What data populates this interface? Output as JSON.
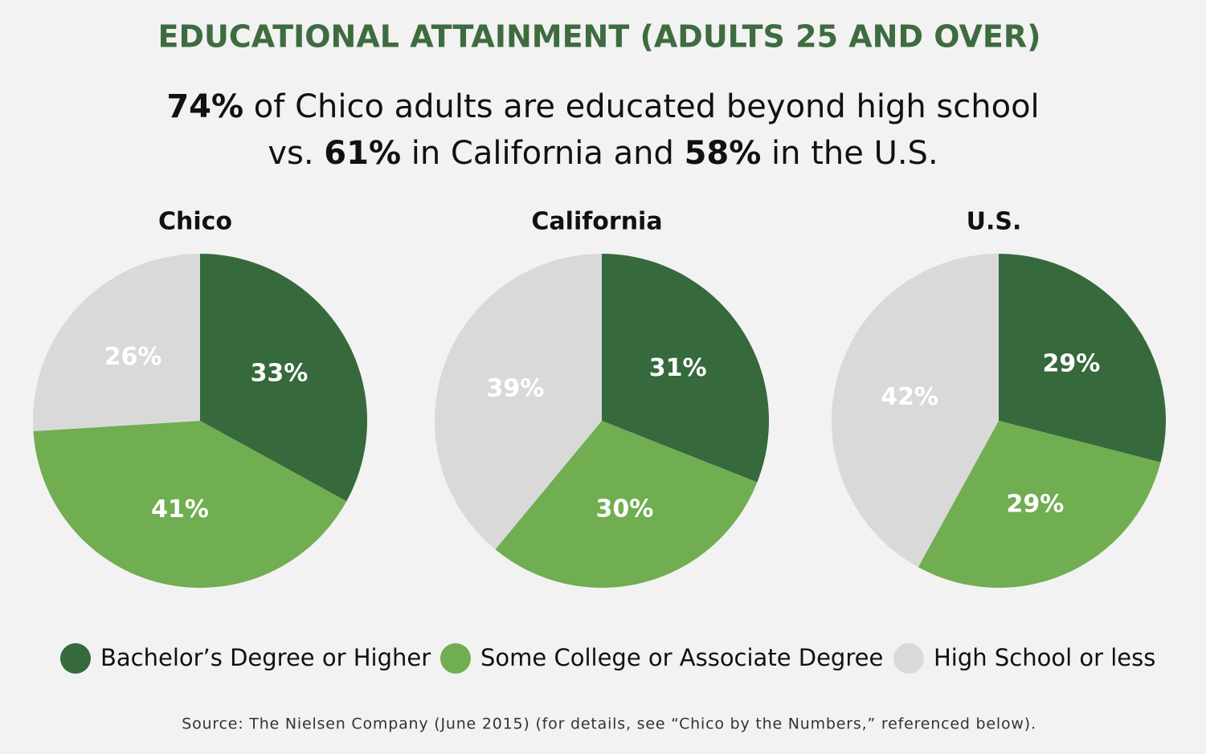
{
  "title": "EDUCATIONAL ATTAINMENT (ADULTS 25 AND OVER)",
  "subtitle": {
    "line1": [
      "74%",
      " of Chico adults are educated beyond high school"
    ],
    "line2": [
      "vs. ",
      "61%",
      " in California and ",
      "58%",
      " in the U.S."
    ]
  },
  "source": "Source: The Nielsen Company (June 2015) (for details, see “Chico by the Numbers,” referenced below).",
  "chart_data": [
    {
      "type": "pie",
      "title": "Chico",
      "categories": [
        "Bachelor’s Degree or Higher",
        "Some College or Associate Degree",
        "High School or less"
      ],
      "colors": [
        "#36693c",
        "#70ae51",
        "#d9d9d9"
      ],
      "values": [
        33,
        41,
        26
      ],
      "value_labels": [
        "33%",
        "41%",
        "26%"
      ]
    },
    {
      "type": "pie",
      "title": "California",
      "categories": [
        "Bachelor’s Degree or Higher",
        "Some College or Associate Degree",
        "High School or less"
      ],
      "colors": [
        "#36693c",
        "#70ae51",
        "#d9d9d9"
      ],
      "values": [
        31,
        30,
        39
      ],
      "value_labels": [
        "31%",
        "30%",
        "39%"
      ]
    },
    {
      "type": "pie",
      "title": "U.S.",
      "categories": [
        "Bachelor’s Degree or Higher",
        "Some College or Associate Degree",
        "High School or less"
      ],
      "colors": [
        "#36693c",
        "#70ae51",
        "#d9d9d9"
      ],
      "values": [
        29,
        29,
        42
      ],
      "value_labels": [
        "29%",
        "29%",
        "42%"
      ]
    }
  ]
}
